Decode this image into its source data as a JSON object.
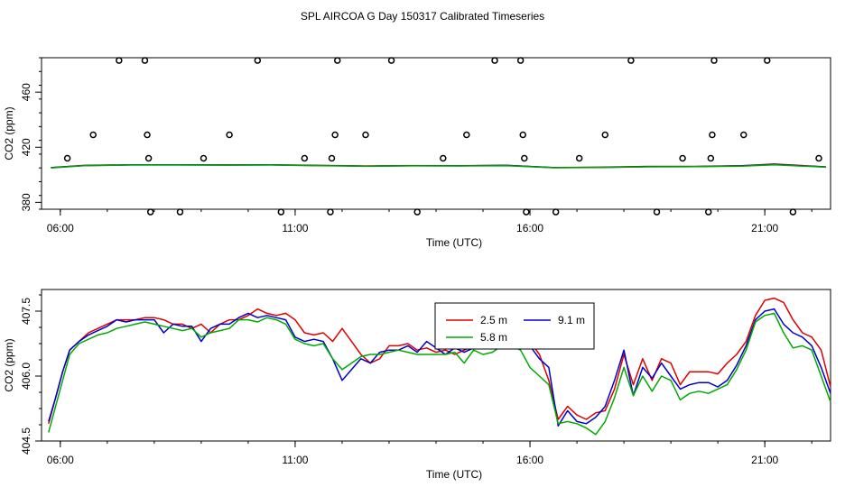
{
  "title": "SPL AIRCOA G  Day 150317  Calibrated Timeseries",
  "chart_data": [
    {
      "type": "scatter",
      "xlabel": "Time (UTC)",
      "ylabel": "CO2 (ppm)",
      "xlim": [
        5.6,
        22.4
      ],
      "ylim": [
        375,
        485
      ],
      "xticks": [
        6,
        11,
        16,
        21
      ],
      "xtick_labels": [
        "06:00",
        "11:00",
        "16:00",
        "21:00"
      ],
      "yticks": [
        380,
        420,
        460
      ],
      "ytick_labels": [
        "380",
        "420",
        "460"
      ],
      "points": [
        {
          "x": 6.15,
          "y": 412
        },
        {
          "x": 6.7,
          "y": 429
        },
        {
          "x": 7.25,
          "y": 483
        },
        {
          "x": 7.8,
          "y": 483
        },
        {
          "x": 7.85,
          "y": 429
        },
        {
          "x": 7.88,
          "y": 412
        },
        {
          "x": 7.92,
          "y": 373
        },
        {
          "x": 8.55,
          "y": 373
        },
        {
          "x": 9.05,
          "y": 412
        },
        {
          "x": 9.6,
          "y": 429
        },
        {
          "x": 10.2,
          "y": 483
        },
        {
          "x": 10.7,
          "y": 373
        },
        {
          "x": 11.2,
          "y": 412
        },
        {
          "x": 11.75,
          "y": 373
        },
        {
          "x": 11.78,
          "y": 412
        },
        {
          "x": 11.85,
          "y": 429
        },
        {
          "x": 11.9,
          "y": 483
        },
        {
          "x": 12.5,
          "y": 429
        },
        {
          "x": 13.05,
          "y": 483
        },
        {
          "x": 13.6,
          "y": 373
        },
        {
          "x": 14.15,
          "y": 412
        },
        {
          "x": 14.65,
          "y": 429
        },
        {
          "x": 15.25,
          "y": 483
        },
        {
          "x": 15.8,
          "y": 483
        },
        {
          "x": 15.85,
          "y": 429
        },
        {
          "x": 15.88,
          "y": 412
        },
        {
          "x": 15.92,
          "y": 373
        },
        {
          "x": 16.55,
          "y": 373
        },
        {
          "x": 17.05,
          "y": 412
        },
        {
          "x": 17.6,
          "y": 429
        },
        {
          "x": 18.15,
          "y": 483
        },
        {
          "x": 18.7,
          "y": 373
        },
        {
          "x": 19.25,
          "y": 412
        },
        {
          "x": 19.8,
          "y": 373
        },
        {
          "x": 19.85,
          "y": 412
        },
        {
          "x": 19.88,
          "y": 429
        },
        {
          "x": 19.92,
          "y": 483
        },
        {
          "x": 20.55,
          "y": 429
        },
        {
          "x": 21.05,
          "y": 483
        },
        {
          "x": 21.6,
          "y": 373
        },
        {
          "x": 22.15,
          "y": 412
        }
      ],
      "series": [
        {
          "color": "#dd0000",
          "x": [
            5.8,
            6.5,
            7.5,
            8.5,
            9.5,
            10.5,
            11.5,
            12.5,
            13.5,
            14.5,
            15.5,
            16.5,
            17.5,
            18.5,
            19.5,
            20.5,
            21.2,
            22.3
          ],
          "values": [
            405.2,
            406.8,
            407.3,
            407.3,
            407.2,
            407.2,
            406.8,
            406.4,
            406.7,
            406.6,
            406.8,
            405.3,
            405.5,
            406.1,
            406.1,
            406.6,
            407.8,
            405.8
          ]
        },
        {
          "color": "#0000cc",
          "x": [
            5.8,
            6.5,
            7.5,
            8.5,
            9.5,
            10.5,
            11.5,
            12.5,
            13.5,
            14.5,
            15.5,
            16.5,
            17.5,
            18.5,
            19.5,
            20.5,
            21.2,
            22.3
          ],
          "values": [
            405.2,
            406.7,
            407.2,
            407.2,
            407.1,
            407.2,
            406.7,
            406.3,
            406.6,
            406.5,
            406.8,
            405.2,
            405.4,
            405.9,
            406.0,
            406.5,
            407.5,
            405.7
          ]
        },
        {
          "color": "#00aa00",
          "x": [
            5.8,
            6.5,
            7.5,
            8.5,
            9.5,
            10.5,
            11.5,
            12.5,
            13.5,
            14.5,
            15.5,
            16.5,
            17.5,
            18.5,
            19.5,
            20.5,
            21.2,
            22.3
          ],
          "values": [
            405.0,
            406.6,
            407.1,
            407.1,
            407.0,
            407.1,
            406.6,
            406.2,
            406.5,
            406.4,
            406.6,
            405.1,
            405.3,
            405.8,
            405.9,
            406.3,
            407.3,
            405.5
          ]
        }
      ]
    },
    {
      "type": "line",
      "xlabel": "Time (UTC)",
      "ylabel": "CO2 (ppm)",
      "xlim": [
        5.6,
        22.4
      ],
      "ylim": [
        404.5,
        408.0
      ],
      "xticks": [
        6,
        11,
        16,
        21
      ],
      "xtick_labels": [
        "06:00",
        "11:00",
        "16:00",
        "21:00"
      ],
      "yticks": [
        404.5,
        406.0,
        407.5
      ],
      "ytick_labels": [
        "404.5",
        "406.0",
        "407.5"
      ],
      "legend": "top-center",
      "series": [
        {
          "name": "2.5 m",
          "color": "#dd0000",
          "x": [
            5.75,
            5.9,
            6.05,
            6.2,
            6.4,
            6.6,
            6.8,
            7.0,
            7.2,
            7.4,
            7.6,
            7.8,
            8.0,
            8.2,
            8.4,
            8.6,
            8.8,
            9.0,
            9.2,
            9.4,
            9.6,
            9.8,
            10.0,
            10.2,
            10.4,
            10.6,
            10.8,
            11.0,
            11.2,
            11.4,
            11.6,
            11.8,
            12.0,
            12.2,
            12.4,
            12.6,
            12.8,
            13.0,
            13.2,
            13.4,
            13.6,
            13.8,
            14.0,
            14.2,
            14.4,
            14.6,
            14.8,
            15.0,
            15.2,
            15.4,
            15.6,
            15.8,
            16.0,
            16.2,
            16.4,
            16.6,
            16.8,
            17.0,
            17.2,
            17.4,
            17.6,
            17.8,
            18.0,
            18.2,
            18.4,
            18.6,
            18.8,
            19.0,
            19.2,
            19.4,
            19.6,
            19.8,
            20.0,
            20.2,
            20.4,
            20.6,
            20.8,
            21.0,
            21.2,
            21.4,
            21.6,
            21.8,
            22.0,
            22.2,
            22.4
          ],
          "values": [
            404.9,
            405.5,
            406.1,
            406.6,
            406.8,
            407.0,
            407.1,
            407.2,
            407.3,
            407.3,
            407.3,
            407.35,
            407.35,
            407.3,
            407.2,
            407.2,
            407.1,
            407.2,
            407.0,
            407.2,
            407.3,
            407.3,
            407.4,
            407.55,
            407.45,
            407.4,
            407.45,
            407.3,
            407.0,
            406.95,
            407.0,
            406.8,
            407.1,
            406.8,
            406.5,
            406.3,
            406.4,
            406.7,
            406.7,
            406.75,
            406.6,
            406.65,
            406.55,
            406.6,
            406.5,
            406.6,
            406.7,
            406.7,
            406.8,
            406.95,
            406.85,
            406.95,
            406.8,
            406.5,
            405.9,
            405.0,
            405.3,
            405.1,
            405.0,
            405.15,
            405.2,
            405.7,
            406.5,
            405.8,
            406.4,
            405.9,
            406.4,
            406.3,
            405.8,
            406.1,
            406.1,
            406.1,
            406.05,
            406.3,
            406.5,
            406.8,
            407.4,
            407.75,
            407.8,
            407.7,
            407.3,
            407.0,
            406.9,
            406.6,
            405.75
          ]
        },
        {
          "name": "9.1 m",
          "color": "#0000cc",
          "x": [
            5.75,
            5.9,
            6.05,
            6.2,
            6.4,
            6.6,
            6.8,
            7.0,
            7.2,
            7.4,
            7.6,
            7.8,
            8.0,
            8.2,
            8.4,
            8.6,
            8.8,
            9.0,
            9.2,
            9.4,
            9.6,
            9.8,
            10.0,
            10.2,
            10.4,
            10.6,
            10.8,
            11.0,
            11.2,
            11.4,
            11.6,
            11.8,
            12.0,
            12.2,
            12.4,
            12.6,
            12.8,
            13.0,
            13.2,
            13.4,
            13.6,
            13.8,
            14.0,
            14.2,
            14.4,
            14.6,
            14.8,
            15.0,
            15.2,
            15.4,
            15.6,
            15.8,
            16.0,
            16.2,
            16.4,
            16.6,
            16.8,
            17.0,
            17.2,
            17.4,
            17.6,
            17.8,
            18.0,
            18.2,
            18.4,
            18.6,
            18.8,
            19.0,
            19.2,
            19.4,
            19.6,
            19.8,
            20.0,
            20.2,
            20.4,
            20.6,
            20.8,
            21.0,
            21.2,
            21.4,
            21.6,
            21.8,
            22.0,
            22.2,
            22.4
          ],
          "values": [
            404.95,
            405.5,
            406.1,
            406.6,
            406.8,
            406.95,
            407.05,
            407.15,
            407.3,
            407.25,
            407.3,
            407.3,
            407.3,
            407.0,
            407.2,
            407.15,
            407.15,
            406.8,
            407.1,
            407.2,
            407.2,
            407.35,
            407.45,
            407.35,
            407.4,
            407.35,
            407.3,
            406.9,
            406.8,
            406.85,
            406.8,
            406.4,
            405.9,
            406.15,
            406.4,
            406.3,
            406.55,
            406.6,
            406.6,
            406.7,
            406.55,
            406.8,
            406.65,
            406.5,
            406.65,
            406.55,
            406.65,
            406.7,
            406.65,
            406.8,
            406.9,
            406.8,
            406.7,
            406.4,
            406.2,
            404.85,
            405.2,
            404.95,
            404.9,
            405.05,
            405.3,
            405.9,
            406.6,
            405.55,
            406.2,
            405.95,
            406.3,
            406.0,
            405.7,
            405.8,
            405.85,
            405.85,
            405.75,
            405.9,
            406.25,
            406.7,
            407.3,
            407.5,
            407.55,
            407.2,
            407.0,
            406.9,
            406.7,
            406.2,
            405.6
          ]
        },
        {
          "name": "5.8 m",
          "color": "#00aa00",
          "x": [
            5.75,
            5.9,
            6.05,
            6.2,
            6.4,
            6.6,
            6.8,
            7.0,
            7.2,
            7.4,
            7.6,
            7.8,
            8.0,
            8.2,
            8.4,
            8.6,
            8.8,
            9.0,
            9.2,
            9.4,
            9.6,
            9.8,
            10.0,
            10.2,
            10.4,
            10.6,
            10.8,
            11.0,
            11.2,
            11.4,
            11.6,
            11.8,
            12.0,
            12.2,
            12.4,
            12.6,
            12.8,
            13.0,
            13.2,
            13.4,
            13.6,
            13.8,
            14.0,
            14.2,
            14.4,
            14.6,
            14.8,
            15.0,
            15.2,
            15.4,
            15.6,
            15.8,
            16.0,
            16.2,
            16.4,
            16.6,
            16.8,
            17.0,
            17.2,
            17.4,
            17.6,
            17.8,
            18.0,
            18.2,
            18.4,
            18.6,
            18.8,
            19.0,
            19.2,
            19.4,
            19.6,
            19.8,
            20.0,
            20.2,
            20.4,
            20.6,
            20.8,
            21.0,
            21.2,
            21.4,
            21.6,
            21.8,
            22.0,
            22.2,
            22.4
          ],
          "values": [
            404.7,
            405.3,
            405.9,
            406.5,
            406.75,
            406.85,
            406.95,
            407.0,
            407.1,
            407.15,
            407.2,
            407.25,
            407.2,
            407.15,
            407.1,
            407.05,
            407.1,
            406.9,
            407.0,
            407.05,
            407.1,
            407.3,
            407.3,
            407.25,
            407.35,
            407.3,
            407.2,
            406.85,
            406.75,
            406.7,
            406.75,
            406.4,
            406.15,
            406.3,
            406.45,
            406.5,
            406.5,
            406.55,
            406.6,
            406.55,
            406.5,
            406.5,
            406.5,
            406.5,
            406.55,
            406.3,
            406.6,
            406.5,
            406.55,
            406.7,
            406.7,
            406.6,
            406.2,
            406.0,
            405.8,
            404.9,
            404.95,
            404.9,
            404.8,
            404.65,
            404.95,
            405.5,
            406.2,
            405.55,
            406.0,
            405.65,
            406.0,
            405.9,
            405.45,
            405.6,
            405.65,
            405.6,
            405.7,
            405.8,
            406.15,
            406.6,
            407.25,
            407.4,
            407.45,
            407.0,
            406.65,
            406.7,
            406.6,
            406.0,
            405.4
          ]
        }
      ]
    }
  ]
}
